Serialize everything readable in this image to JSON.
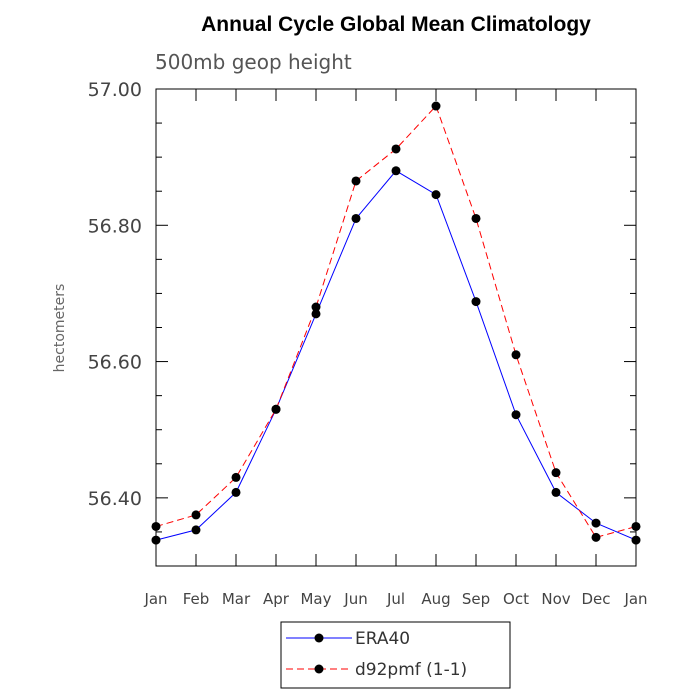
{
  "chart_data": {
    "type": "line",
    "title": "Annual Cycle Global Mean Climatology",
    "subtitle": "500mb geop height",
    "xlabel": "",
    "ylabel": "hectometers",
    "categories": [
      "Jan",
      "Feb",
      "Mar",
      "Apr",
      "May",
      "Jun",
      "Jul",
      "Aug",
      "Sep",
      "Oct",
      "Nov",
      "Dec",
      "Jan"
    ],
    "ylim": [
      56.3,
      57.0
    ],
    "yticks": [
      56.4,
      56.6,
      56.8,
      57.0
    ],
    "ytick_labels": [
      "56.40",
      "56.60",
      "56.80",
      "57.00"
    ],
    "grid": false,
    "legend_position": "bottom",
    "series": [
      {
        "name": "ERA40",
        "color": "#0000ff",
        "dash": "solid",
        "marker": "filled-circle",
        "values": [
          56.338,
          56.353,
          56.408,
          56.53,
          56.67,
          56.81,
          56.88,
          56.845,
          56.688,
          56.522,
          56.408,
          56.363,
          56.338
        ]
      },
      {
        "name": "d92pmf (1-1)",
        "color": "#ff0000",
        "dash": "dashed",
        "marker": "filled-circle",
        "values": [
          56.358,
          56.375,
          56.43,
          56.53,
          56.68,
          56.865,
          56.912,
          56.975,
          56.81,
          56.61,
          56.437,
          56.342,
          56.358
        ]
      }
    ]
  }
}
